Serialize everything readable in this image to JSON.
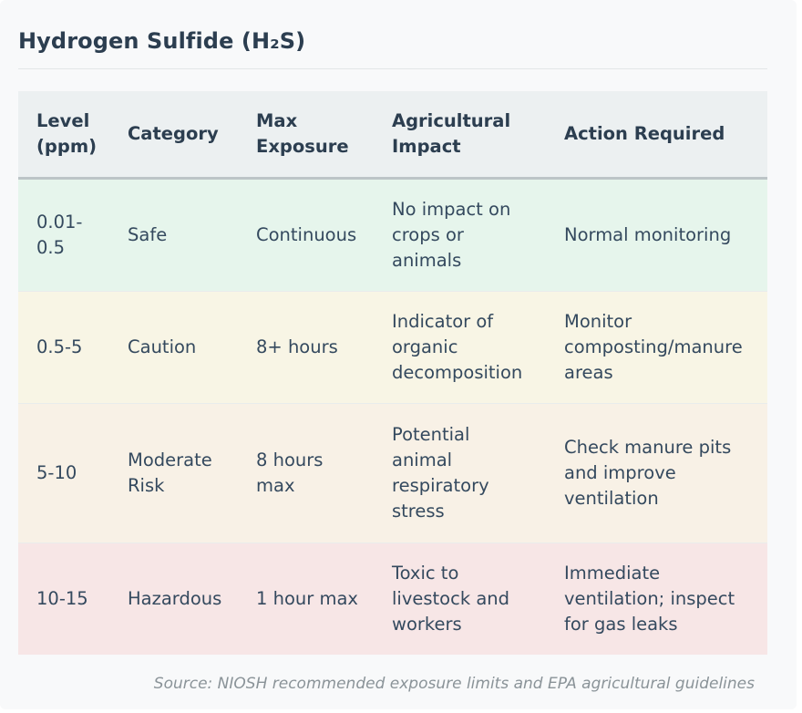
{
  "title": "Hydrogen Sulfide (H₂S)",
  "table": {
    "headers": [
      "Level (ppm)",
      "Category",
      "Max Exposure",
      "Agricultural Impact",
      "Action Required"
    ],
    "rows": [
      {
        "level": "0.01-0.5",
        "category": "Safe",
        "max_exposure": "Continuous",
        "impact": "No impact on crops or animals",
        "action": "Normal monitoring",
        "color": "#e6f5ec"
      },
      {
        "level": "0.5-5",
        "category": "Caution",
        "max_exposure": "8+ hours",
        "impact": "Indicator of organic decomposition",
        "action": "Monitor composting/manure areas",
        "color": "#f8f5e5"
      },
      {
        "level": "5-10",
        "category": "Moderate Risk",
        "max_exposure": "8 hours max",
        "impact": "Potential animal respiratory stress",
        "action": "Check manure pits and improve ventilation",
        "color": "#f8f1e6"
      },
      {
        "level": "10-15",
        "category": "Hazardous",
        "max_exposure": "1 hour max",
        "impact": "Toxic to livestock and workers",
        "action": "Immediate ventilation; inspect for gas leaks",
        "color": "#f7e6e6"
      }
    ]
  },
  "source": "Source: NIOSH recommended exposure limits and EPA agricultural guidelines"
}
